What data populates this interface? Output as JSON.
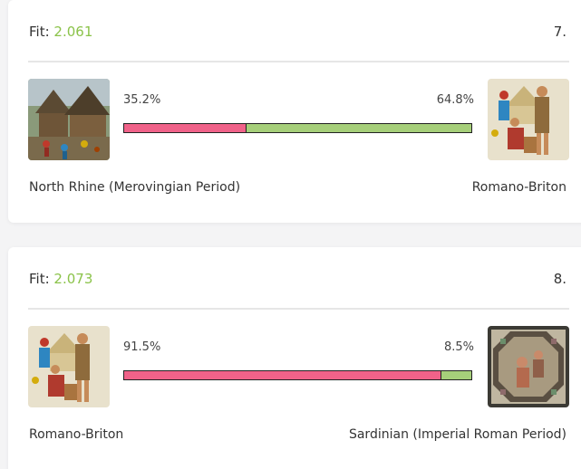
{
  "results": [
    {
      "fit_label": "Fit:",
      "fit_value": "2.061",
      "rank": "7.",
      "left": {
        "name": "North Rhine (Merovingian Period)",
        "percent_label": "35.2%",
        "percent": 35.2,
        "image_icon": "village-scene-icon"
      },
      "right": {
        "name": "Romano-Briton",
        "percent_label": "64.8%",
        "percent": 64.8,
        "image_icon": "romano-briton-figures-icon"
      }
    },
    {
      "fit_label": "Fit:",
      "fit_value": "2.073",
      "rank": "8.",
      "left": {
        "name": "Romano-Briton",
        "percent_label": "91.5%",
        "percent": 91.5,
        "image_icon": "romano-briton-figures-icon"
      },
      "right": {
        "name": "Sardinian (Imperial Roman Period)",
        "percent_label": "8.5%",
        "percent": 8.5,
        "image_icon": "roman-mosaic-icon"
      }
    }
  ],
  "colors": {
    "fit_value": "#8bc34a",
    "bar_left": "#f06289",
    "bar_right": "#a6cf7a"
  }
}
